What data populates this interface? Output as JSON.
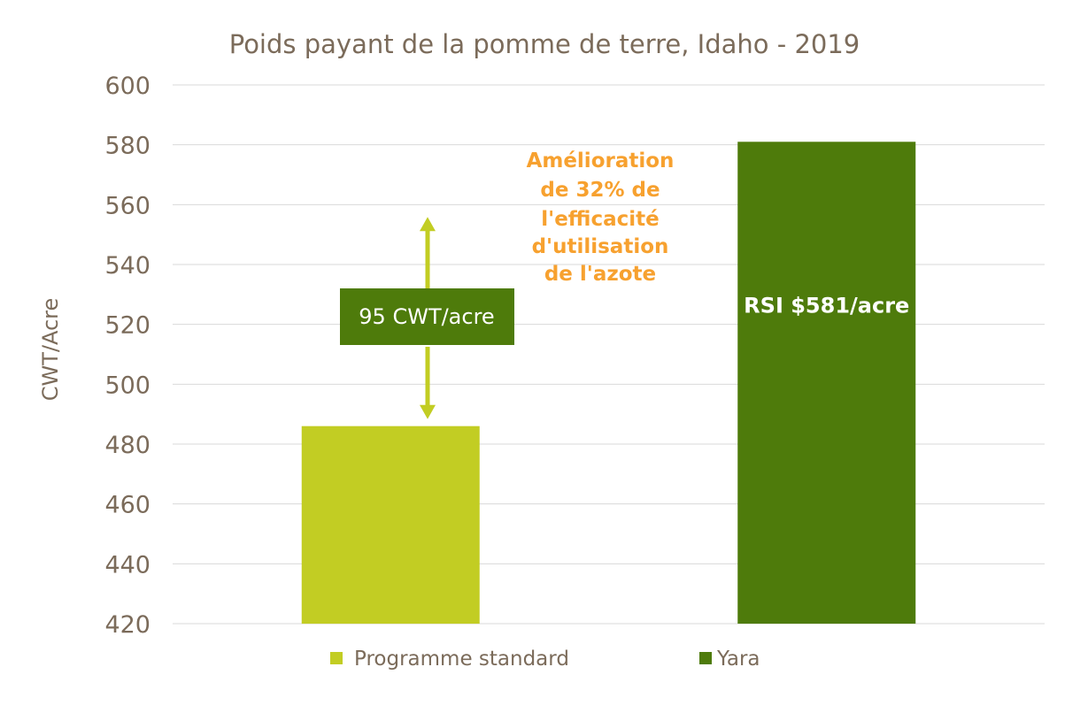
{
  "chart_data": {
    "type": "bar",
    "title": "Poids payant de la pomme de terre, Idaho - 2019",
    "xlabel": "",
    "ylabel": "CWT/Acre",
    "ylim": [
      420,
      600
    ],
    "yticks": [
      420,
      440,
      460,
      480,
      500,
      520,
      540,
      560,
      580,
      600
    ],
    "grid": true,
    "legend_position": "bottom",
    "categories": [
      "Programme standard",
      "Yara"
    ],
    "values": [
      486,
      581
    ],
    "colors": [
      "#c2cd23",
      "#4e7b0b"
    ],
    "bar_labels": [
      "",
      "RSI $581/acre"
    ],
    "difference_label": "95 CWT/acre",
    "annotation": [
      "Amélioration",
      "de 32% de",
      "l'efficacité",
      "d'utilisation",
      "de l'azote"
    ],
    "annotation_color": "#f7a12f"
  }
}
